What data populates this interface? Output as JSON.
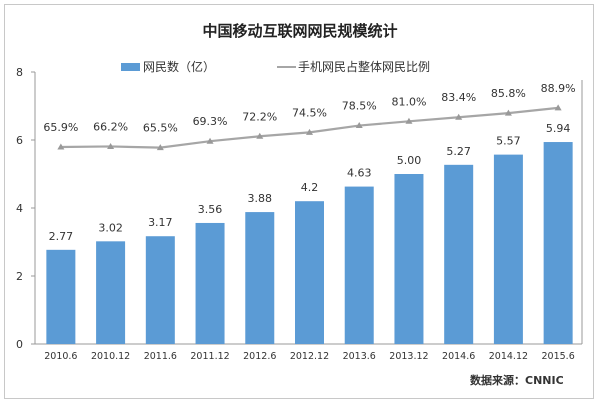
{
  "chart_data": {
    "type": "bar",
    "title": "中国移动互联网网民规模统计",
    "categories": [
      "2010.6",
      "2010.12",
      "2011.6",
      "2011.12",
      "2012.6",
      "2012.12",
      "2013.6",
      "2013.12",
      "2014.6",
      "2014.12",
      "2015.6"
    ],
    "series": [
      {
        "name": "网民数（亿）",
        "type": "bar",
        "color": "#5b9bd5",
        "values": [
          2.77,
          3.02,
          3.17,
          3.56,
          3.88,
          4.2,
          4.63,
          5.0,
          5.27,
          5.57,
          5.94
        ],
        "labels": [
          "2.77",
          "3.02",
          "3.17",
          "3.56",
          "3.88",
          "4.2",
          "4.63",
          "5.00",
          "5.27",
          "5.57",
          "5.94"
        ]
      },
      {
        "name": "手机网民占整体网民比例",
        "type": "line",
        "color": "#a6a6a6",
        "axis": "secondary",
        "values": [
          65.9,
          66.2,
          65.5,
          69.3,
          72.2,
          74.5,
          78.5,
          81.0,
          83.4,
          85.8,
          88.9
        ],
        "labels": [
          "65.9%",
          "66.2%",
          "65.5%",
          "69.3%",
          "72.2%",
          "74.5%",
          "78.5%",
          "81.0%",
          "83.4%",
          "85.8%",
          "88.9%"
        ]
      }
    ],
    "ylim": [
      0,
      8
    ],
    "yticks": [
      "0",
      "2",
      "4",
      "6",
      "8"
    ],
    "y2lim": [
      -50,
      110
    ],
    "grid": false,
    "legend": "top"
  },
  "source": "数据来源：CNNIC"
}
